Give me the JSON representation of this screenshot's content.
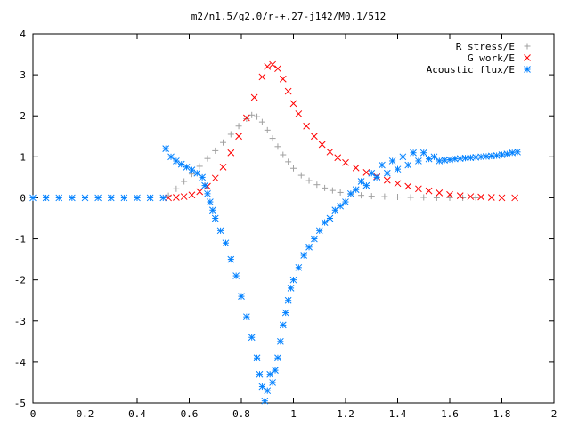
{
  "chart_data": {
    "type": "scatter",
    "title": "m2/n1.5/q2.0/r-+.27-j142/M0.1/512",
    "xlabel": "",
    "ylabel": "",
    "xlim": [
      0,
      2
    ],
    "ylim": [
      -5,
      4
    ],
    "x_ticks": [
      "0",
      "0.2",
      "0.4",
      "0.6",
      "0.8",
      "1",
      "1.2",
      "1.4",
      "1.6",
      "1.8",
      "2"
    ],
    "y_ticks": [
      "-5",
      "-4",
      "-3",
      "-2",
      "-1",
      "0",
      "1",
      "2",
      "3",
      "4"
    ],
    "grid": false,
    "legend_position": "top-right",
    "series": [
      {
        "name": "R stress/E",
        "marker": "+",
        "color": "#a0a0a0",
        "points": [
          [
            0.52,
            0.05
          ],
          [
            0.55,
            0.22
          ],
          [
            0.58,
            0.4
          ],
          [
            0.61,
            0.58
          ],
          [
            0.64,
            0.77
          ],
          [
            0.67,
            0.96
          ],
          [
            0.7,
            1.15
          ],
          [
            0.73,
            1.35
          ],
          [
            0.76,
            1.55
          ],
          [
            0.79,
            1.75
          ],
          [
            0.82,
            1.93
          ],
          [
            0.84,
            2.02
          ],
          [
            0.86,
            1.98
          ],
          [
            0.88,
            1.85
          ],
          [
            0.9,
            1.65
          ],
          [
            0.92,
            1.45
          ],
          [
            0.94,
            1.25
          ],
          [
            0.96,
            1.05
          ],
          [
            0.98,
            0.88
          ],
          [
            1.0,
            0.72
          ],
          [
            1.03,
            0.55
          ],
          [
            1.06,
            0.42
          ],
          [
            1.09,
            0.32
          ],
          [
            1.12,
            0.24
          ],
          [
            1.15,
            0.18
          ],
          [
            1.18,
            0.13
          ],
          [
            1.22,
            0.09
          ],
          [
            1.26,
            0.06
          ],
          [
            1.3,
            0.04
          ],
          [
            1.35,
            0.03
          ],
          [
            1.4,
            0.02
          ],
          [
            1.45,
            0.01
          ],
          [
            1.5,
            0.01
          ],
          [
            1.55,
            0.0
          ],
          [
            1.6,
            0.0
          ],
          [
            1.65,
            0.0
          ],
          [
            1.7,
            0.0
          ]
        ]
      },
      {
        "name": "G work/E",
        "marker": "x",
        "color": "#ff0000",
        "points": [
          [
            0.52,
            0.0
          ],
          [
            0.55,
            0.01
          ],
          [
            0.58,
            0.03
          ],
          [
            0.61,
            0.07
          ],
          [
            0.64,
            0.15
          ],
          [
            0.67,
            0.28
          ],
          [
            0.7,
            0.48
          ],
          [
            0.73,
            0.75
          ],
          [
            0.76,
            1.1
          ],
          [
            0.79,
            1.5
          ],
          [
            0.82,
            1.95
          ],
          [
            0.85,
            2.45
          ],
          [
            0.88,
            2.95
          ],
          [
            0.9,
            3.2
          ],
          [
            0.92,
            3.25
          ],
          [
            0.94,
            3.15
          ],
          [
            0.96,
            2.9
          ],
          [
            0.98,
            2.6
          ],
          [
            1.0,
            2.3
          ],
          [
            1.02,
            2.05
          ],
          [
            1.05,
            1.75
          ],
          [
            1.08,
            1.5
          ],
          [
            1.11,
            1.3
          ],
          [
            1.14,
            1.12
          ],
          [
            1.17,
            0.98
          ],
          [
            1.2,
            0.86
          ],
          [
            1.24,
            0.73
          ],
          [
            1.28,
            0.62
          ],
          [
            1.32,
            0.52
          ],
          [
            1.36,
            0.43
          ],
          [
            1.4,
            0.35
          ],
          [
            1.44,
            0.28
          ],
          [
            1.48,
            0.22
          ],
          [
            1.52,
            0.17
          ],
          [
            1.56,
            0.12
          ],
          [
            1.6,
            0.08
          ],
          [
            1.64,
            0.05
          ],
          [
            1.68,
            0.03
          ],
          [
            1.72,
            0.02
          ],
          [
            1.76,
            0.01
          ],
          [
            1.8,
            0.0
          ],
          [
            1.85,
            0.0
          ]
        ]
      },
      {
        "name": "Acoustic flux/E",
        "marker": "*",
        "color": "#0080ff",
        "points": [
          [
            0.0,
            0.0
          ],
          [
            0.05,
            0.0
          ],
          [
            0.1,
            0.0
          ],
          [
            0.15,
            0.0
          ],
          [
            0.2,
            0.0
          ],
          [
            0.25,
            0.0
          ],
          [
            0.3,
            0.0
          ],
          [
            0.35,
            0.0
          ],
          [
            0.4,
            0.0
          ],
          [
            0.45,
            0.0
          ],
          [
            0.5,
            0.0
          ],
          [
            0.51,
            1.2
          ],
          [
            0.53,
            1.0
          ],
          [
            0.55,
            0.9
          ],
          [
            0.57,
            0.82
          ],
          [
            0.59,
            0.75
          ],
          [
            0.61,
            0.68
          ],
          [
            0.63,
            0.6
          ],
          [
            0.65,
            0.5
          ],
          [
            0.66,
            0.3
          ],
          [
            0.67,
            0.1
          ],
          [
            0.68,
            -0.1
          ],
          [
            0.69,
            -0.3
          ],
          [
            0.7,
            -0.5
          ],
          [
            0.72,
            -0.8
          ],
          [
            0.74,
            -1.1
          ],
          [
            0.76,
            -1.5
          ],
          [
            0.78,
            -1.9
          ],
          [
            0.8,
            -2.4
          ],
          [
            0.82,
            -2.9
          ],
          [
            0.84,
            -3.4
          ],
          [
            0.86,
            -3.9
          ],
          [
            0.87,
            -4.3
          ],
          [
            0.88,
            -4.6
          ],
          [
            0.89,
            -4.95
          ],
          [
            0.9,
            -4.7
          ],
          [
            0.91,
            -4.3
          ],
          [
            0.92,
            -4.5
          ],
          [
            0.93,
            -4.2
          ],
          [
            0.94,
            -3.9
          ],
          [
            0.95,
            -3.5
          ],
          [
            0.96,
            -3.1
          ],
          [
            0.97,
            -2.8
          ],
          [
            0.98,
            -2.5
          ],
          [
            0.99,
            -2.2
          ],
          [
            1.0,
            -2.0
          ],
          [
            1.02,
            -1.7
          ],
          [
            1.04,
            -1.4
          ],
          [
            1.06,
            -1.2
          ],
          [
            1.08,
            -1.0
          ],
          [
            1.1,
            -0.8
          ],
          [
            1.12,
            -0.6
          ],
          [
            1.14,
            -0.5
          ],
          [
            1.16,
            -0.3
          ],
          [
            1.18,
            -0.2
          ],
          [
            1.2,
            -0.1
          ],
          [
            1.22,
            0.1
          ],
          [
            1.24,
            0.2
          ],
          [
            1.26,
            0.4
          ],
          [
            1.28,
            0.3
          ],
          [
            1.3,
            0.6
          ],
          [
            1.32,
            0.5
          ],
          [
            1.34,
            0.8
          ],
          [
            1.36,
            0.6
          ],
          [
            1.38,
            0.9
          ],
          [
            1.4,
            0.7
          ],
          [
            1.42,
            1.0
          ],
          [
            1.44,
            0.8
          ],
          [
            1.46,
            1.1
          ],
          [
            1.48,
            0.9
          ],
          [
            1.5,
            1.1
          ],
          [
            1.52,
            0.95
          ],
          [
            1.54,
            1.0
          ],
          [
            1.56,
            0.9
          ],
          [
            1.58,
            0.92
          ],
          [
            1.6,
            0.93
          ],
          [
            1.62,
            0.95
          ],
          [
            1.64,
            0.96
          ],
          [
            1.66,
            0.97
          ],
          [
            1.68,
            0.98
          ],
          [
            1.7,
            0.99
          ],
          [
            1.72,
            1.0
          ],
          [
            1.74,
            1.01
          ],
          [
            1.76,
            1.02
          ],
          [
            1.78,
            1.03
          ],
          [
            1.8,
            1.05
          ],
          [
            1.82,
            1.07
          ],
          [
            1.84,
            1.1
          ],
          [
            1.86,
            1.12
          ]
        ]
      }
    ]
  }
}
